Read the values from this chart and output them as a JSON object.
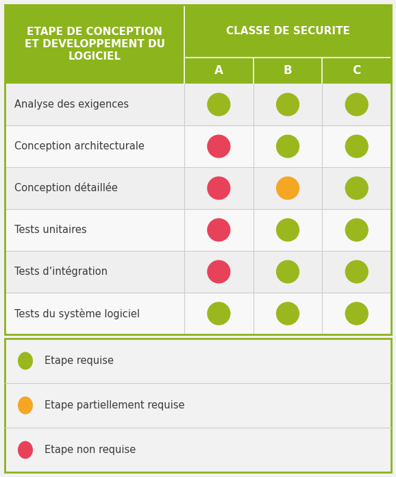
{
  "header_bg": "#8cb41c",
  "header_text_color": "#ffffff",
  "body_bg": "#f2f2f2",
  "border_color": "#8cb41c",
  "col1_header_lines": [
    "ETAPE DE CONCEPTION",
    "ET DEVELOPPEMENT DU",
    "LOGICIEL"
  ],
  "col2_header": "CLASSE DE SECURITE",
  "subheaders": [
    "A",
    "B",
    "C"
  ],
  "rows": [
    "Analyse des exigences",
    "Conception architecturale",
    "Conception détaillée",
    "Tests unitaires",
    "Tests d’intégration",
    "Tests du système logiciel"
  ],
  "dot_colors": [
    [
      "#9ab81e",
      "#9ab81e",
      "#9ab81e"
    ],
    [
      "#e8415a",
      "#9ab81e",
      "#9ab81e"
    ],
    [
      "#e8415a",
      "#f5a623",
      "#9ab81e"
    ],
    [
      "#e8415a",
      "#9ab81e",
      "#9ab81e"
    ],
    [
      "#e8415a",
      "#9ab81e",
      "#9ab81e"
    ],
    [
      "#9ab81e",
      "#9ab81e",
      "#9ab81e"
    ]
  ],
  "legend_items": [
    {
      "color": "#9ab81e",
      "label": "Etape requise"
    },
    {
      "color": "#f5a623",
      "label": "Etape partiellement requise"
    },
    {
      "color": "#e8415a",
      "label": "Etape non requise"
    }
  ],
  "text_color": "#3a3a3a",
  "row_line_color": "#cccccc",
  "fig_width": 5.78,
  "fig_height": 6.96,
  "dpi": 100
}
